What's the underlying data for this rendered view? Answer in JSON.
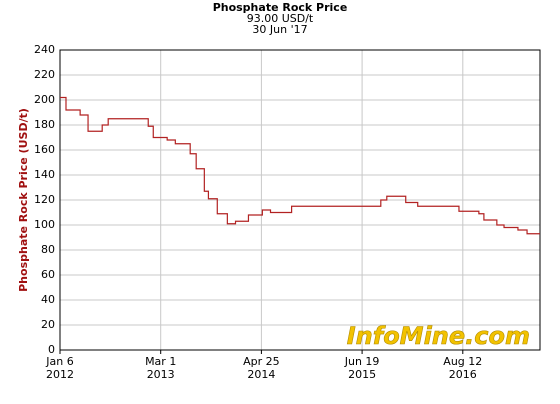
{
  "chart_data": {
    "type": "line",
    "step": true,
    "title": "Phosphate Rock Price",
    "subtitle": "93.00 USD/t",
    "date_label": "30 Jun '17",
    "y_label": "Phosphate Rock Price (USD/t)",
    "watermark": "InfoMine.com",
    "x": [
      "2012-01-06",
      "2012-01-31",
      "2012-03-30",
      "2012-05-02",
      "2012-06-30",
      "2012-07-25",
      "2013-01-08",
      "2013-01-29",
      "2013-03-28",
      "2013-05-01",
      "2013-07-02",
      "2013-07-27",
      "2013-08-30",
      "2013-09-16",
      "2013-10-23",
      "2013-12-04",
      "2014-01-07",
      "2014-03-02",
      "2014-04-29",
      "2014-06-02",
      "2014-08-29",
      "2015-09-05",
      "2015-09-30",
      "2015-12-18",
      "2016-02-06",
      "2016-07-27",
      "2016-10-18",
      "2016-11-08",
      "2017-01-01",
      "2017-01-31",
      "2017-03-30",
      "2017-05-07",
      "2017-06-30"
    ],
    "series": [
      {
        "name": "Phosphate Rock Price",
        "color": "#b22222",
        "values": [
          202,
          192,
          188,
          175,
          180,
          185,
          179,
          170,
          168,
          165,
          157,
          145,
          127,
          121,
          109,
          101,
          103,
          108,
          112,
          110,
          115,
          120,
          123,
          118,
          115,
          111,
          109,
          104,
          100,
          98,
          96,
          93,
          93
        ]
      }
    ],
    "xlim": [
      "2012-01-06",
      "2017-06-30"
    ],
    "xticks": [
      {
        "value": "2012-01-06",
        "label": [
          "Jan 6",
          "2012"
        ]
      },
      {
        "value": "2013-03-01",
        "label": [
          "Mar 1",
          "2013"
        ]
      },
      {
        "value": "2014-04-25",
        "label": [
          "Apr 25",
          "2014"
        ]
      },
      {
        "value": "2015-06-19",
        "label": [
          "Jun 19",
          "2015"
        ]
      },
      {
        "value": "2016-08-12",
        "label": [
          "Aug 12",
          "2016"
        ]
      }
    ],
    "ylim": [
      0,
      240
    ],
    "yticks": [
      0,
      20,
      40,
      60,
      80,
      100,
      120,
      140,
      160,
      180,
      200,
      220,
      240
    ],
    "grid": true
  }
}
